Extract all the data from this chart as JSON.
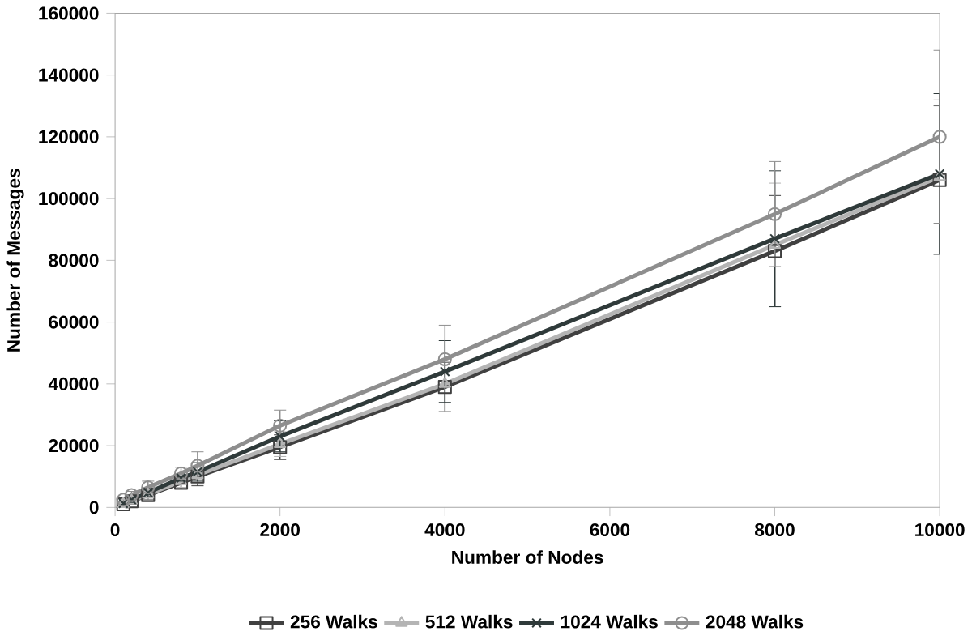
{
  "chart_data": {
    "type": "line",
    "xlabel": "Number of Nodes",
    "ylabel": "Number of Messages",
    "x": [
      100,
      200,
      400,
      800,
      1000,
      2000,
      4000,
      8000,
      10000
    ],
    "series": [
      {
        "name": "256 Walks",
        "color": "#404040",
        "marker": "square",
        "values": [
          1000,
          2000,
          4000,
          8000,
          10000,
          19500,
          39000,
          83000,
          106000
        ],
        "errors": [
          500,
          1000,
          1500,
          2000,
          3000,
          4000,
          8000,
          18000,
          24000
        ]
      },
      {
        "name": "512 Walks",
        "color": "#b4b4b4",
        "marker": "triangle",
        "values": [
          1100,
          2200,
          4200,
          8500,
          10500,
          20500,
          40000,
          85000,
          107000
        ],
        "errors": [
          500,
          1000,
          1500,
          2000,
          3000,
          4000,
          9000,
          20000,
          25000
        ]
      },
      {
        "name": "1024 Walks",
        "color": "#2f3a3a",
        "marker": "cross",
        "values": [
          1300,
          2500,
          4800,
          9500,
          11500,
          23000,
          44000,
          87000,
          108000
        ],
        "errors": [
          600,
          1000,
          1500,
          1000,
          3000,
          5000,
          10000,
          22000,
          26000
        ]
      },
      {
        "name": "2048 Walks",
        "color": "#8e8e8e",
        "marker": "circle",
        "values": [
          2500,
          4000,
          6500,
          11000,
          13500,
          26500,
          48000,
          95000,
          120000
        ],
        "errors": [
          800,
          1200,
          2000,
          2000,
          4500,
          5000,
          11000,
          17000,
          28000
        ]
      }
    ],
    "xlim": [
      0,
      10000
    ],
    "xticks": [
      0,
      2000,
      4000,
      6000,
      8000,
      10000
    ],
    "ylim": [
      0,
      160000
    ],
    "yticks": [
      0,
      20000,
      40000,
      60000,
      80000,
      100000,
      120000,
      140000,
      160000
    ],
    "grid": false,
    "legend": "bottom",
    "line_style": "solid"
  }
}
